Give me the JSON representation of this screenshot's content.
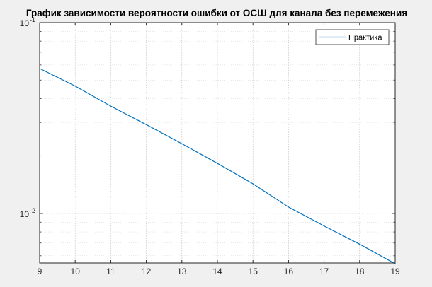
{
  "chart_data": {
    "type": "line",
    "title": "График зависимости вероятности ошибки от ОСШ для канала без перемежения",
    "xlabel": "",
    "ylabel": "",
    "xlim": [
      9,
      19
    ],
    "ylim": [
      0.0055,
      0.1
    ],
    "yscale": "log",
    "grid": true,
    "legend_position": "top-right",
    "x_ticks": [
      9,
      10,
      11,
      12,
      13,
      14,
      15,
      16,
      17,
      18,
      19
    ],
    "y_ticks": [
      {
        "value": 0.1,
        "base": "10",
        "exponent": "-1"
      },
      {
        "value": 0.01,
        "base": "10",
        "exponent": "-2"
      }
    ],
    "series": [
      {
        "name": "Практика",
        "color": "#0072bd",
        "x": [
          9,
          10,
          11,
          12,
          13,
          14,
          15,
          16,
          17,
          18,
          19
        ],
        "y": [
          0.0575,
          0.0465,
          0.0365,
          0.0292,
          0.0232,
          0.0183,
          0.0143,
          0.0108,
          0.0086,
          0.0069,
          0.00545
        ]
      }
    ]
  }
}
